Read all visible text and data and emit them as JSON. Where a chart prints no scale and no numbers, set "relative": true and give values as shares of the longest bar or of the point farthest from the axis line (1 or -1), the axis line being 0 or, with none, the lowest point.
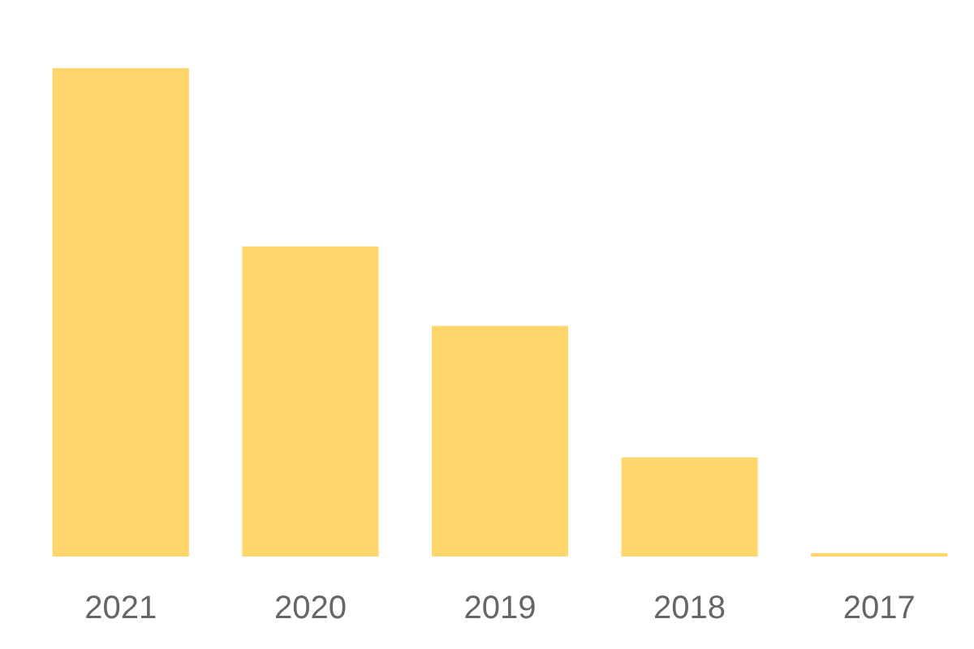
{
  "chart_data": {
    "type": "bar",
    "relative": true,
    "categories": [
      "2021",
      "2020",
      "2019",
      "2018",
      "2017"
    ],
    "values": [
      1,
      0.635,
      0.472,
      0.203,
      0.007
    ],
    "color": "#ffd66b",
    "grid": false
  }
}
